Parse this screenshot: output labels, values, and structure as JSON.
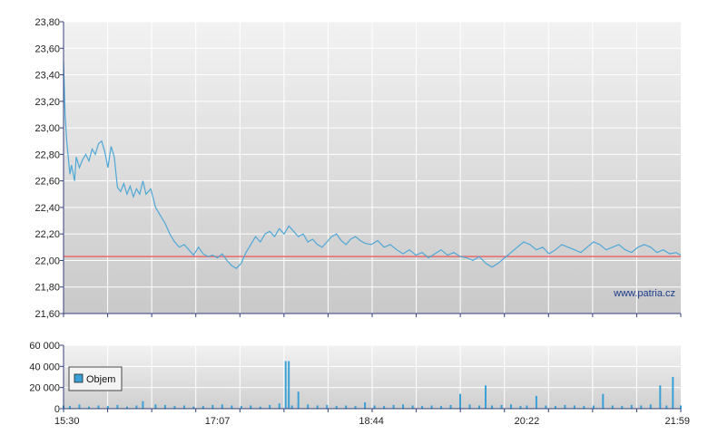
{
  "watermark": "www.patria.cz",
  "colors": {
    "price_line": "#4fa7d6",
    "reference_line": "#e86a6a",
    "volume_bar": "#3aa0d6",
    "axis": "#33407a",
    "grid": "#ffffff"
  },
  "chart_data": [
    {
      "type": "line",
      "title": "",
      "xlabel": "",
      "ylabel": "",
      "ylim": [
        21.6,
        23.8
      ],
      "y_ticks": [
        "23,80",
        "23,60",
        "23,40",
        "23,20",
        "23,00",
        "22,80",
        "22,60",
        "22,40",
        "22,20",
        "22,00",
        "21,80",
        "21,60"
      ],
      "x_ticks": [
        "15:30",
        "17:07",
        "18:44",
        "20:22",
        "21:59"
      ],
      "x_range": [
        "15:30",
        "21:59"
      ],
      "reference_line": 22.03,
      "grid": true,
      "series": [
        {
          "x": [
            "15:30",
            "15:31",
            "15:32",
            "15:34",
            "15:35",
            "15:37",
            "15:38",
            "15:40",
            "15:42",
            "15:44",
            "15:46",
            "15:48",
            "15:50",
            "15:52",
            "15:54",
            "15:56",
            "15:58",
            "16:00",
            "16:02",
            "16:04",
            "16:06",
            "16:08",
            "16:10",
            "16:12",
            "16:14",
            "16:16",
            "16:18",
            "16:20",
            "16:22",
            "16:25",
            "16:28",
            "16:31",
            "16:34",
            "16:37",
            "16:40",
            "16:43",
            "16:46",
            "16:49",
            "16:52",
            "16:55",
            "16:58",
            "17:01",
            "17:04",
            "17:07",
            "17:10",
            "17:13",
            "17:16",
            "17:19",
            "17:22",
            "17:25",
            "17:28",
            "17:31",
            "17:34",
            "17:37",
            "17:40",
            "17:43",
            "17:46",
            "17:49",
            "17:52",
            "17:55",
            "17:58",
            "18:01",
            "18:04",
            "18:07",
            "18:10",
            "18:13",
            "18:16",
            "18:19",
            "18:22",
            "18:25",
            "18:28",
            "18:31",
            "18:34",
            "18:37",
            "18:40",
            "18:44",
            "18:48",
            "18:52",
            "18:56",
            "19:00",
            "19:04",
            "19:08",
            "19:12",
            "19:16",
            "19:20",
            "19:24",
            "19:28",
            "19:32",
            "19:36",
            "19:40",
            "19:44",
            "19:48",
            "19:52",
            "19:56",
            "20:00",
            "20:04",
            "20:08",
            "20:12",
            "20:16",
            "20:20",
            "20:24",
            "20:28",
            "20:32",
            "20:36",
            "20:40",
            "20:44",
            "20:48",
            "20:52",
            "20:56",
            "21:00",
            "21:04",
            "21:08",
            "21:12",
            "21:16",
            "21:20",
            "21:24",
            "21:28",
            "21:32",
            "21:36",
            "21:40",
            "21:44",
            "21:48",
            "21:52",
            "21:56",
            "21:59"
          ],
          "values": [
            23.5,
            23.1,
            22.9,
            22.65,
            22.72,
            22.6,
            22.78,
            22.7,
            22.76,
            22.8,
            22.75,
            22.84,
            22.8,
            22.88,
            22.9,
            22.82,
            22.7,
            22.86,
            22.78,
            22.55,
            22.52,
            22.58,
            22.5,
            22.56,
            22.48,
            22.54,
            22.5,
            22.6,
            22.5,
            22.54,
            22.4,
            22.34,
            22.28,
            22.2,
            22.14,
            22.1,
            22.12,
            22.08,
            22.04,
            22.1,
            22.05,
            22.03,
            22.04,
            22.02,
            22.05,
            22.0,
            21.96,
            21.94,
            21.98,
            22.06,
            22.12,
            22.18,
            22.14,
            22.2,
            22.22,
            22.18,
            22.24,
            22.2,
            22.26,
            22.22,
            22.18,
            22.2,
            22.14,
            22.16,
            22.12,
            22.1,
            22.14,
            22.18,
            22.2,
            22.15,
            22.12,
            22.16,
            22.18,
            22.15,
            22.13,
            22.12,
            22.15,
            22.1,
            22.12,
            22.08,
            22.05,
            22.08,
            22.04,
            22.06,
            22.02,
            22.05,
            22.08,
            22.04,
            22.06,
            22.03,
            22.02,
            22.0,
            22.03,
            21.98,
            21.95,
            21.98,
            22.02,
            22.06,
            22.1,
            22.14,
            22.12,
            22.08,
            22.1,
            22.05,
            22.08,
            22.12,
            22.1,
            22.08,
            22.06,
            22.1,
            22.14,
            22.12,
            22.08,
            22.1,
            22.12,
            22.08,
            22.06,
            22.1,
            22.12,
            22.1,
            22.06,
            22.08,
            22.05,
            22.06,
            22.04
          ]
        }
      ]
    },
    {
      "type": "bar",
      "title": "",
      "xlabel": "",
      "ylabel": "",
      "ylim": [
        0,
        60000
      ],
      "y_ticks": [
        "60 000",
        "40 000",
        "20 000",
        "0"
      ],
      "x_ticks": [
        "15:30",
        "17:07",
        "18:44",
        "20:22",
        "21:59"
      ],
      "legend": [
        "Objem"
      ],
      "legend_position": "left",
      "grid": true,
      "series": [
        {
          "name": "Objem",
          "x": [
            "15:30",
            "15:34",
            "15:40",
            "15:46",
            "15:52",
            "15:58",
            "16:04",
            "16:10",
            "16:16",
            "16:20",
            "16:28",
            "16:34",
            "16:40",
            "16:46",
            "16:52",
            "16:58",
            "17:04",
            "17:10",
            "17:16",
            "17:22",
            "17:28",
            "17:34",
            "17:40",
            "17:46",
            "17:50",
            "17:52",
            "17:54",
            "17:58",
            "18:04",
            "18:10",
            "18:16",
            "18:22",
            "18:28",
            "18:34",
            "18:40",
            "18:46",
            "18:52",
            "18:58",
            "19:04",
            "19:10",
            "19:16",
            "19:22",
            "19:28",
            "19:34",
            "19:40",
            "19:46",
            "19:52",
            "19:56",
            "20:00",
            "20:06",
            "20:12",
            "20:18",
            "20:22",
            "20:28",
            "20:34",
            "20:40",
            "20:46",
            "20:52",
            "20:58",
            "21:04",
            "21:10",
            "21:16",
            "21:22",
            "21:28",
            "21:34",
            "21:40",
            "21:46",
            "21:50",
            "21:54",
            "21:59"
          ],
          "values": [
            3000,
            2500,
            4000,
            2000,
            3000,
            2500,
            3500,
            2000,
            3000,
            7000,
            4000,
            3500,
            2500,
            3000,
            2000,
            2500,
            3500,
            4000,
            3000,
            2500,
            3000,
            2000,
            3500,
            5000,
            45000,
            45000,
            3000,
            16000,
            4000,
            3000,
            3500,
            2500,
            3000,
            2500,
            6000,
            3000,
            2500,
            3500,
            4000,
            3000,
            2500,
            3000,
            2500,
            3500,
            14000,
            4000,
            3000,
            22000,
            3000,
            3500,
            4000,
            2500,
            3000,
            12000,
            3000,
            2500,
            3500,
            3000,
            2500,
            3000,
            14000,
            3000,
            2500,
            3500,
            3000,
            4000,
            22000,
            3000,
            30000,
            3000
          ]
        }
      ]
    }
  ]
}
